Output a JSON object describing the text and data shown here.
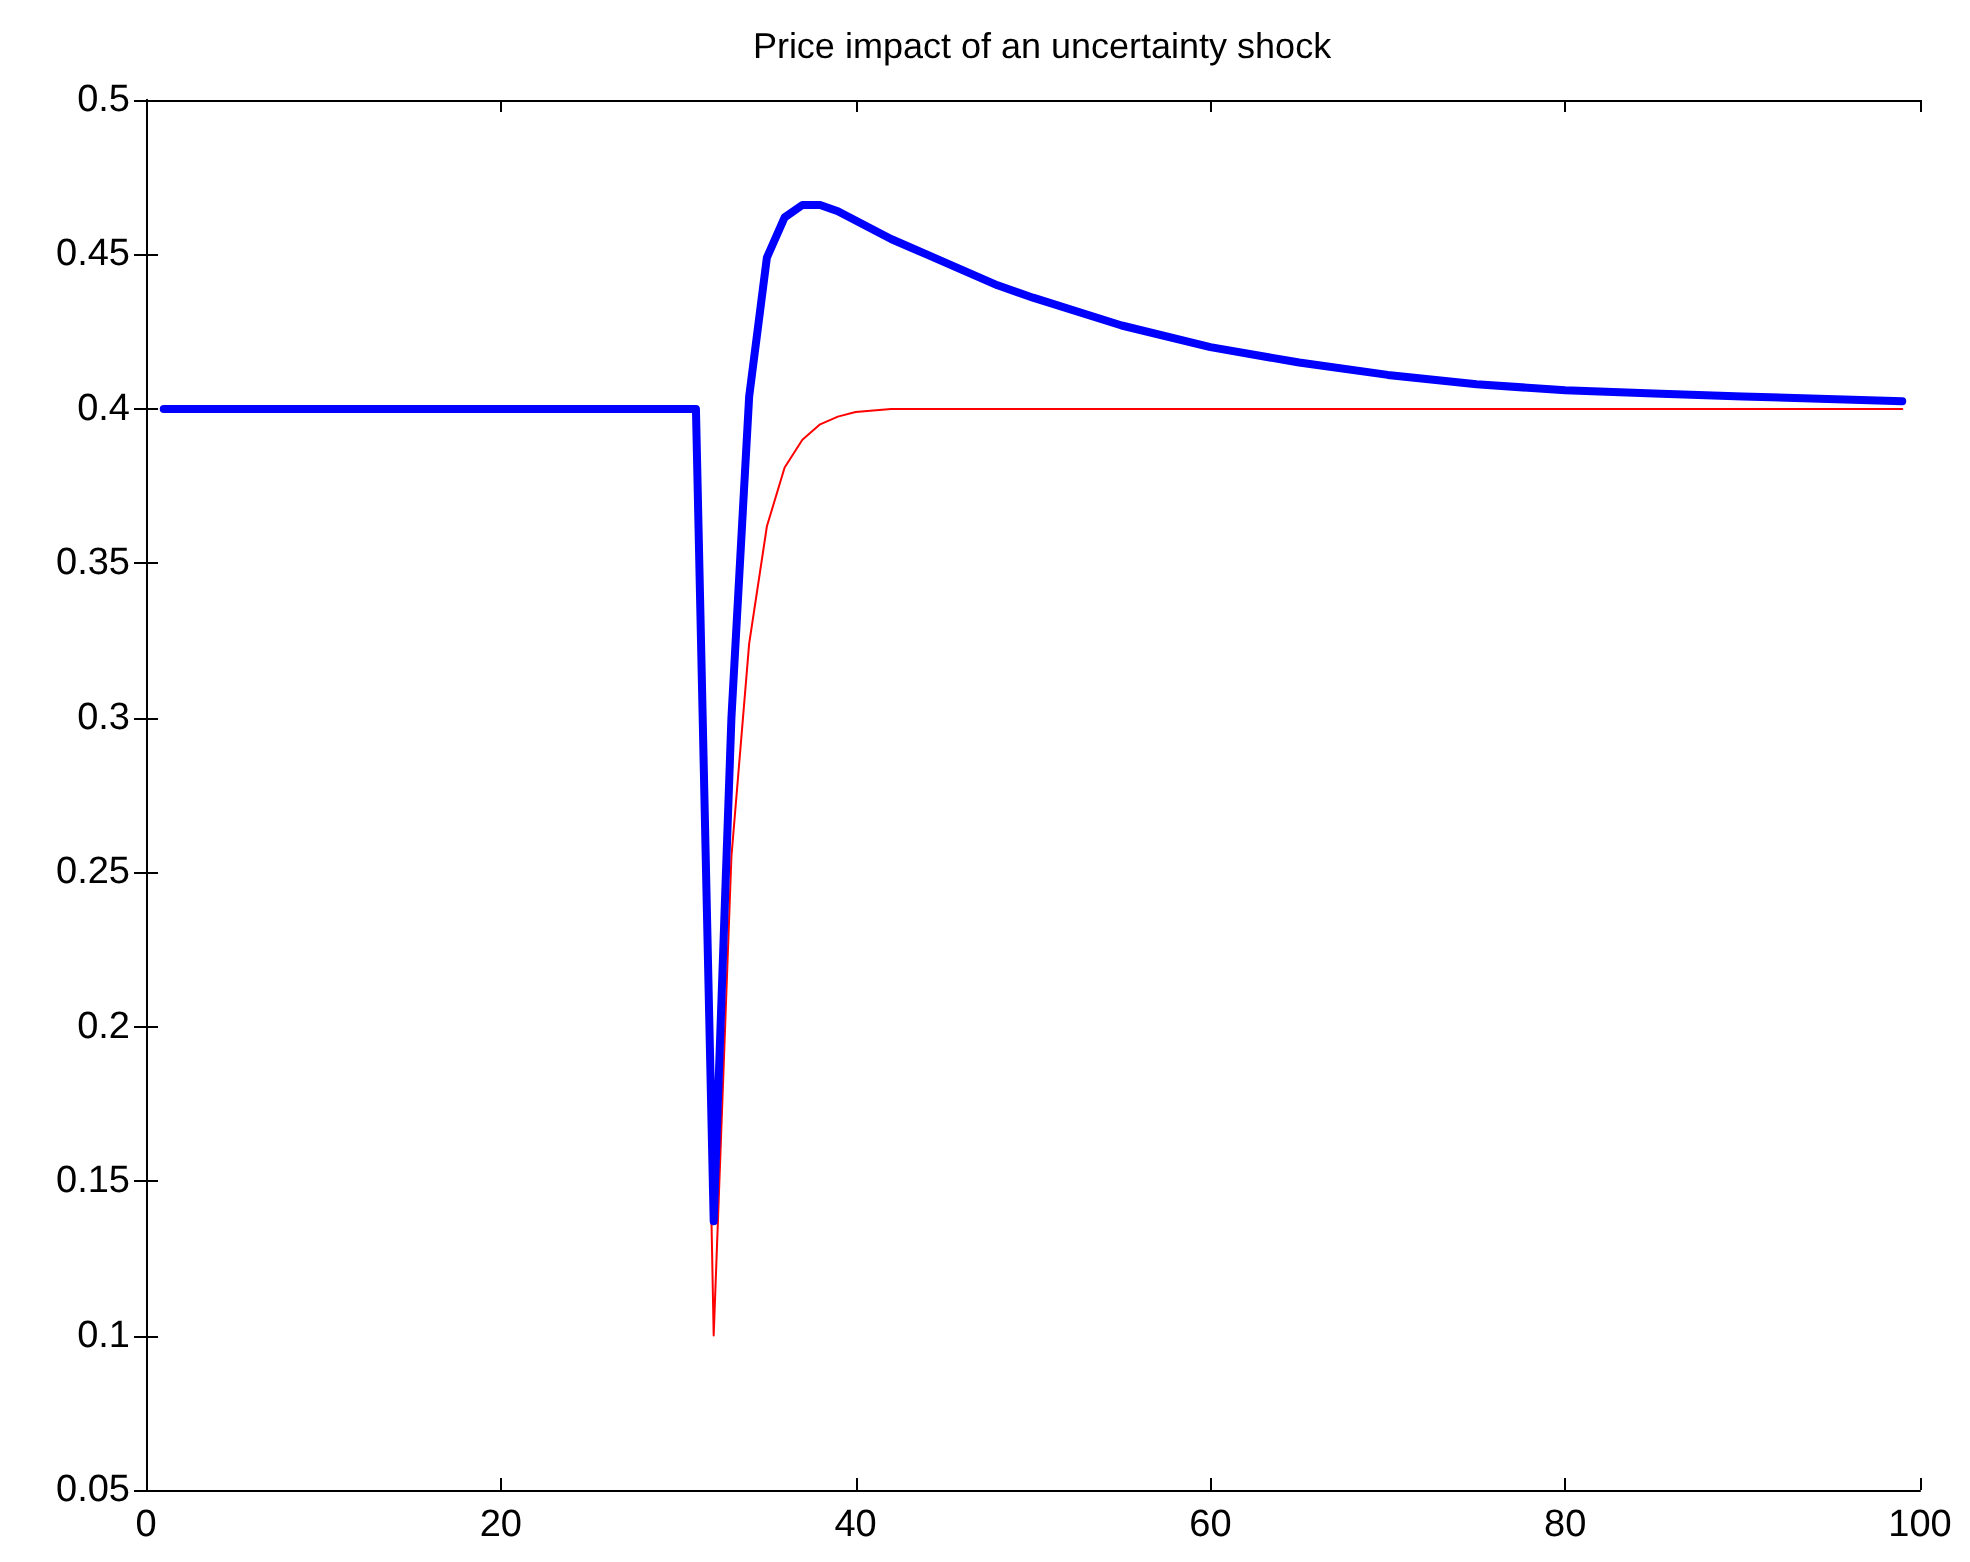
{
  "chart_data": {
    "type": "line",
    "title": "Price impact of an uncertainty shock",
    "xlim": [
      0,
      100
    ],
    "xticks": [
      0,
      20,
      40,
      60,
      80,
      100
    ],
    "ylim": [
      0.05,
      0.5
    ],
    "yticks": [
      0.05,
      0.1,
      0.15,
      0.2,
      0.25,
      0.3,
      0.35,
      0.4,
      0.45,
      0.5
    ],
    "marker": "none",
    "line_style": "solid",
    "series": [
      {
        "color": "#ff0000",
        "x": [
          1,
          31,
          32,
          33,
          34,
          35,
          36,
          37,
          38,
          39,
          40,
          42,
          99
        ],
        "values": [
          0.4,
          0.4,
          0.1,
          0.255,
          0.324,
          0.362,
          0.381,
          0.39,
          0.395,
          0.3975,
          0.399,
          0.4,
          0.4
        ]
      },
      {
        "color": "#0000ff",
        "x": [
          1,
          31,
          32,
          33,
          34,
          35,
          36,
          37,
          38,
          39,
          40,
          42,
          44,
          46,
          48,
          50,
          55,
          60,
          65,
          70,
          75,
          80,
          85,
          90,
          99
        ],
        "values": [
          0.4,
          0.4,
          0.137,
          0.3,
          0.404,
          0.449,
          0.462,
          0.466,
          0.466,
          0.464,
          0.461,
          0.455,
          0.45,
          0.445,
          0.44,
          0.436,
          0.427,
          0.42,
          0.415,
          0.411,
          0.408,
          0.406,
          0.405,
          0.404,
          0.4025
        ]
      }
    ]
  }
}
